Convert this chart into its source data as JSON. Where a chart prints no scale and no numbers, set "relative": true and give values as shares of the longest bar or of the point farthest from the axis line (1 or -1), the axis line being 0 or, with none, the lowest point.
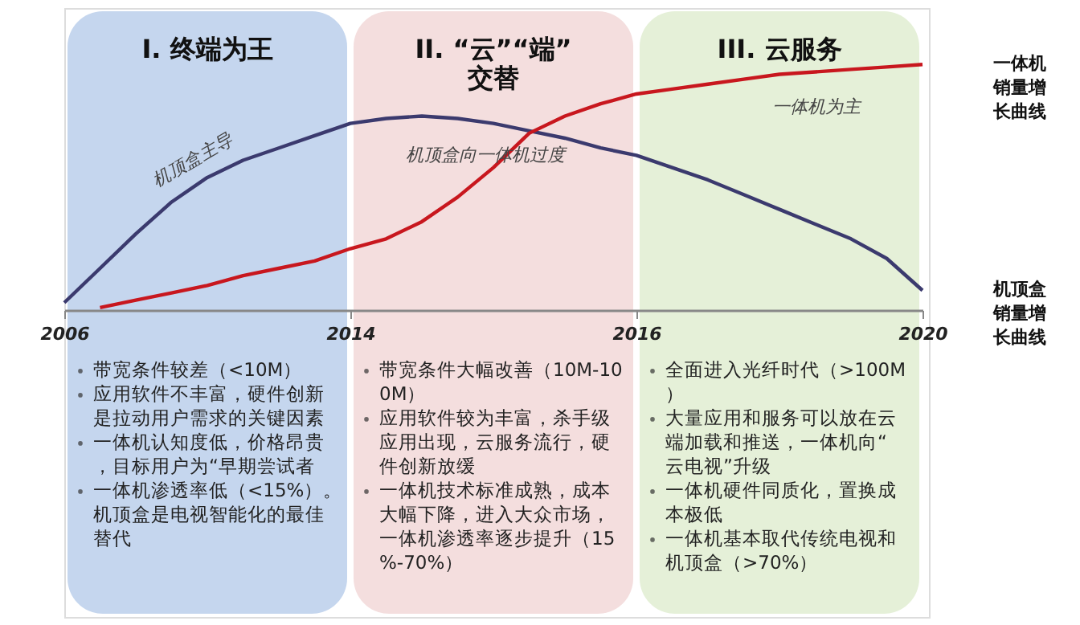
{
  "chart_data": {
    "type": "line",
    "relative": true,
    "categories": [
      "2006",
      null,
      null,
      null,
      null,
      null,
      null,
      null,
      "2014",
      null,
      null,
      null,
      null,
      null,
      null,
      null,
      "2016",
      null,
      null,
      null,
      null,
      null,
      null,
      null,
      "2020"
    ],
    "series": [
      {
        "name": "机顶盒销量增长曲线",
        "color": "#3b3a6e",
        "values": [
          0.03,
          0.17,
          0.31,
          0.44,
          0.54,
          0.61,
          0.66,
          0.71,
          0.76,
          0.78,
          0.79,
          0.78,
          0.76,
          0.73,
          0.7,
          0.66,
          0.63,
          0.58,
          0.53,
          0.47,
          0.41,
          0.35,
          0.29,
          0.21,
          0.08
        ]
      },
      {
        "name": "一体机销量增长曲线",
        "color": "#c8171e",
        "values": [
          null,
          0.01,
          0.04,
          0.07,
          0.1,
          0.14,
          0.17,
          0.2,
          0.25,
          0.29,
          0.36,
          0.46,
          0.58,
          0.72,
          0.79,
          0.84,
          0.88,
          0.9,
          0.92,
          0.94,
          0.96,
          0.97,
          0.98,
          0.99,
          1.0
        ]
      }
    ],
    "bands": [
      {
        "axis": "x",
        "from": "2006",
        "to": "2014",
        "label": "I. 终端为王",
        "color": "#c5d6ee"
      },
      {
        "axis": "x",
        "from": "2014",
        "to": "2016",
        "label": "II. “云”“端”交替",
        "color": "#f4dede"
      },
      {
        "axis": "x",
        "from": "2016",
        "to": "2020",
        "label": "III. 云服务",
        "color": "#e5f0d8"
      }
    ],
    "annotations": [
      "机顶盒主导",
      "机顶盒向一体机过度",
      "一体机为主",
      {
        "text": "带宽条件较差（<10M）",
        "x": "2006"
      },
      {
        "text": "应用软件不丰富，硬件创新是拉动用户需求的关键因素",
        "x": "2006"
      },
      {
        "text": "一体机认知度低，价格昂贵，目标用户为“早期尝试者",
        "x": "2006"
      },
      {
        "text": "一体机渗透率低（<15%）。机顶盒是电视智能化的最佳替代",
        "x": "2006"
      },
      {
        "text": "带宽条件大幅改善（10M-100M）",
        "x": "2014"
      },
      {
        "text": "应用软件较为丰富，杀手级应用出现，云服务流行，硬件创新放缓",
        "x": "2014"
      },
      {
        "text": "一体机技术标准成熟，成本大幅下降，进入大众市场，一体机渗透率逐步提升（15%-70%）",
        "x": "2014"
      },
      {
        "text": "全面进入光纤时代（>100M）",
        "x": "2016"
      },
      {
        "text": "大量应用和服务可以放在云端加载和推送，一体机向“云电视”升级",
        "x": "2016"
      },
      {
        "text": "一体机硬件同质化，置换成本极低",
        "x": "2016"
      },
      {
        "text": "一体机基本取代传统电视和机顶盒（>70%）",
        "x": "2016"
      }
    ]
  }
}
